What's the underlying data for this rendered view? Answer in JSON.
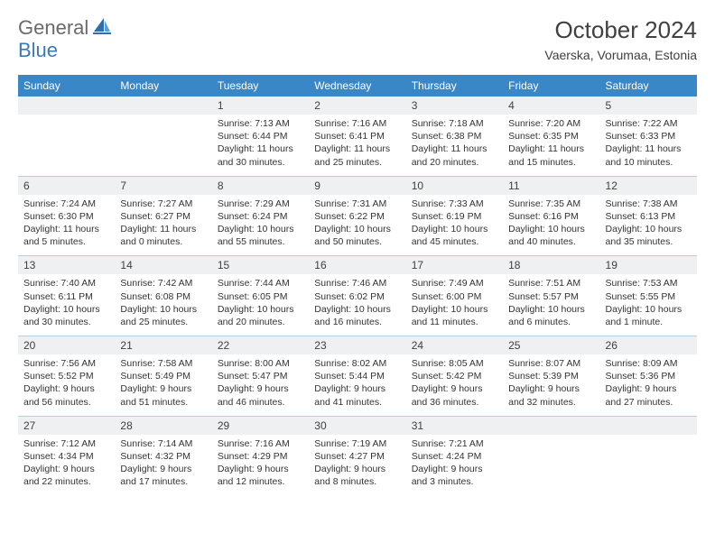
{
  "logo": {
    "general": "General",
    "blue": "Blue"
  },
  "title": "October 2024",
  "location": "Vaerska, Vorumaa, Estonia",
  "colors": {
    "header_bg": "#3a87c8",
    "daynum_bg": "#eef0f2",
    "sep": "#b8cfe0",
    "text": "#333333",
    "logo_gray": "#6a6a6a",
    "logo_blue": "#3a7ab8"
  },
  "dayheads": [
    "Sunday",
    "Monday",
    "Tuesday",
    "Wednesday",
    "Thursday",
    "Friday",
    "Saturday"
  ],
  "weeks": [
    [
      null,
      null,
      {
        "n": "1",
        "sr": "7:13 AM",
        "ss": "6:44 PM",
        "dl": "11 hours and 30 minutes."
      },
      {
        "n": "2",
        "sr": "7:16 AM",
        "ss": "6:41 PM",
        "dl": "11 hours and 25 minutes."
      },
      {
        "n": "3",
        "sr": "7:18 AM",
        "ss": "6:38 PM",
        "dl": "11 hours and 20 minutes."
      },
      {
        "n": "4",
        "sr": "7:20 AM",
        "ss": "6:35 PM",
        "dl": "11 hours and 15 minutes."
      },
      {
        "n": "5",
        "sr": "7:22 AM",
        "ss": "6:33 PM",
        "dl": "11 hours and 10 minutes."
      }
    ],
    [
      {
        "n": "6",
        "sr": "7:24 AM",
        "ss": "6:30 PM",
        "dl": "11 hours and 5 minutes."
      },
      {
        "n": "7",
        "sr": "7:27 AM",
        "ss": "6:27 PM",
        "dl": "11 hours and 0 minutes."
      },
      {
        "n": "8",
        "sr": "7:29 AM",
        "ss": "6:24 PM",
        "dl": "10 hours and 55 minutes."
      },
      {
        "n": "9",
        "sr": "7:31 AM",
        "ss": "6:22 PM",
        "dl": "10 hours and 50 minutes."
      },
      {
        "n": "10",
        "sr": "7:33 AM",
        "ss": "6:19 PM",
        "dl": "10 hours and 45 minutes."
      },
      {
        "n": "11",
        "sr": "7:35 AM",
        "ss": "6:16 PM",
        "dl": "10 hours and 40 minutes."
      },
      {
        "n": "12",
        "sr": "7:38 AM",
        "ss": "6:13 PM",
        "dl": "10 hours and 35 minutes."
      }
    ],
    [
      {
        "n": "13",
        "sr": "7:40 AM",
        "ss": "6:11 PM",
        "dl": "10 hours and 30 minutes."
      },
      {
        "n": "14",
        "sr": "7:42 AM",
        "ss": "6:08 PM",
        "dl": "10 hours and 25 minutes."
      },
      {
        "n": "15",
        "sr": "7:44 AM",
        "ss": "6:05 PM",
        "dl": "10 hours and 20 minutes."
      },
      {
        "n": "16",
        "sr": "7:46 AM",
        "ss": "6:02 PM",
        "dl": "10 hours and 16 minutes."
      },
      {
        "n": "17",
        "sr": "7:49 AM",
        "ss": "6:00 PM",
        "dl": "10 hours and 11 minutes."
      },
      {
        "n": "18",
        "sr": "7:51 AM",
        "ss": "5:57 PM",
        "dl": "10 hours and 6 minutes."
      },
      {
        "n": "19",
        "sr": "7:53 AM",
        "ss": "5:55 PM",
        "dl": "10 hours and 1 minute."
      }
    ],
    [
      {
        "n": "20",
        "sr": "7:56 AM",
        "ss": "5:52 PM",
        "dl": "9 hours and 56 minutes."
      },
      {
        "n": "21",
        "sr": "7:58 AM",
        "ss": "5:49 PM",
        "dl": "9 hours and 51 minutes."
      },
      {
        "n": "22",
        "sr": "8:00 AM",
        "ss": "5:47 PM",
        "dl": "9 hours and 46 minutes."
      },
      {
        "n": "23",
        "sr": "8:02 AM",
        "ss": "5:44 PM",
        "dl": "9 hours and 41 minutes."
      },
      {
        "n": "24",
        "sr": "8:05 AM",
        "ss": "5:42 PM",
        "dl": "9 hours and 36 minutes."
      },
      {
        "n": "25",
        "sr": "8:07 AM",
        "ss": "5:39 PM",
        "dl": "9 hours and 32 minutes."
      },
      {
        "n": "26",
        "sr": "8:09 AM",
        "ss": "5:36 PM",
        "dl": "9 hours and 27 minutes."
      }
    ],
    [
      {
        "n": "27",
        "sr": "7:12 AM",
        "ss": "4:34 PM",
        "dl": "9 hours and 22 minutes."
      },
      {
        "n": "28",
        "sr": "7:14 AM",
        "ss": "4:32 PM",
        "dl": "9 hours and 17 minutes."
      },
      {
        "n": "29",
        "sr": "7:16 AM",
        "ss": "4:29 PM",
        "dl": "9 hours and 12 minutes."
      },
      {
        "n": "30",
        "sr": "7:19 AM",
        "ss": "4:27 PM",
        "dl": "9 hours and 8 minutes."
      },
      {
        "n": "31",
        "sr": "7:21 AM",
        "ss": "4:24 PM",
        "dl": "9 hours and 3 minutes."
      },
      null,
      null
    ]
  ]
}
